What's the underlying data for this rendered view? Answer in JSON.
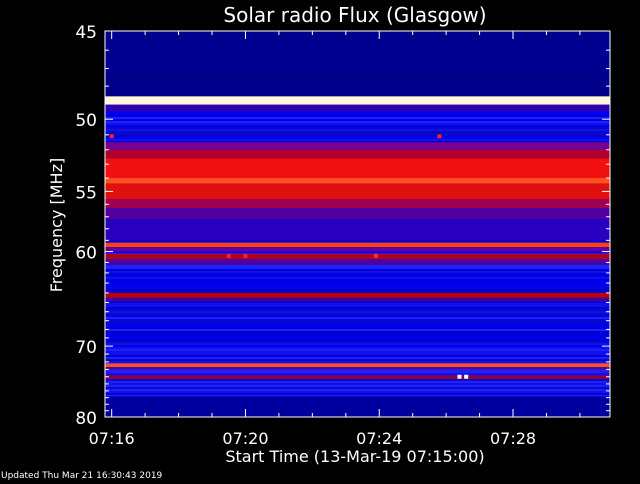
{
  "footer": {
    "updated": "Updated Thu Mar 21 16:30:43 2019"
  },
  "chart_data": {
    "type": "heatmap",
    "title": "Solar radio Flux (Glasgow)",
    "xlabel": "Start Time (13-Mar-19 07:15:00)",
    "ylabel": "Frequency [MHz]",
    "x_range_minutes": [
      15.8,
      30.9
    ],
    "y_range_mhz": [
      45,
      80
    ],
    "y_ticks": [
      45,
      50,
      55,
      60,
      70,
      80
    ],
    "y_tick_labels": [
      "45",
      "50",
      "55",
      "60",
      "70",
      "80"
    ],
    "y_minor_ticks": [
      46,
      47,
      48,
      49,
      51,
      52,
      53,
      54,
      56,
      57,
      58,
      59,
      61,
      62,
      63,
      64,
      65,
      66,
      67,
      68,
      69,
      71,
      72,
      73,
      74,
      75,
      76,
      77,
      78,
      79
    ],
    "x_ticks": [
      16,
      20,
      24,
      28
    ],
    "x_tick_labels": [
      "07:16",
      "07:20",
      "07:24",
      "07:28"
    ],
    "x_minor_ticks": [
      17,
      18,
      19,
      21,
      22,
      23,
      25,
      26,
      27,
      29,
      30
    ],
    "background_colors": [
      "#0000d8",
      "#0000f0",
      "#1010e8",
      "#0808c8",
      "#2020f8"
    ],
    "bands": [
      {
        "mhz_low": 45.0,
        "mhz_high": 47.0,
        "color": "#000090"
      },
      {
        "mhz_low": 47.0,
        "mhz_high": 48.6,
        "color": "#00008a"
      },
      {
        "mhz_low": 48.6,
        "mhz_high": 49.1,
        "color": "#fff7d8"
      },
      {
        "mhz_low": 49.1,
        "mhz_high": 49.5,
        "color": "#3000b0"
      },
      {
        "mhz_low": 51.5,
        "mhz_high": 52.0,
        "color": "#7a0090"
      },
      {
        "mhz_low": 52.0,
        "mhz_high": 52.6,
        "color": "#b00030"
      },
      {
        "mhz_low": 52.6,
        "mhz_high": 54.0,
        "color": "#f01010"
      },
      {
        "mhz_low": 54.0,
        "mhz_high": 54.4,
        "color": "#ff5020"
      },
      {
        "mhz_low": 54.4,
        "mhz_high": 55.6,
        "color": "#e01010"
      },
      {
        "mhz_low": 55.6,
        "mhz_high": 56.3,
        "color": "#a00050"
      },
      {
        "mhz_low": 56.3,
        "mhz_high": 57.2,
        "color": "#5000a0"
      },
      {
        "mhz_low": 57.2,
        "mhz_high": 59.0,
        "color": "#2a00c0"
      },
      {
        "mhz_low": 59.2,
        "mhz_high": 59.6,
        "color": "#ff4010"
      },
      {
        "mhz_low": 59.6,
        "mhz_high": 60.0,
        "color": "#6000a0"
      },
      {
        "mhz_low": 60.2,
        "mhz_high": 60.7,
        "color": "#b00020"
      },
      {
        "mhz_low": 60.7,
        "mhz_high": 61.2,
        "color": "#5000a0"
      },
      {
        "mhz_low": 64.0,
        "mhz_high": 64.5,
        "color": "#c00000"
      },
      {
        "mhz_low": 64.5,
        "mhz_high": 64.9,
        "color": "#4000a0"
      },
      {
        "mhz_low": 72.2,
        "mhz_high": 72.7,
        "color": "#ff5020"
      },
      {
        "mhz_low": 72.7,
        "mhz_high": 73.0,
        "color": "#5000a0"
      },
      {
        "mhz_low": 73.8,
        "mhz_high": 74.3,
        "color": "#900040"
      },
      {
        "mhz_low": 76.8,
        "mhz_high": 80.0,
        "color": "#0000a0"
      }
    ],
    "spots": [
      {
        "minute": 16.0,
        "mhz": 51.1,
        "color": "#ff2020"
      },
      {
        "minute": 25.8,
        "mhz": 51.1,
        "color": "#ff2020"
      },
      {
        "minute": 19.5,
        "mhz": 60.4,
        "color": "#ff2020"
      },
      {
        "minute": 20.0,
        "mhz": 60.4,
        "color": "#ff2020"
      },
      {
        "minute": 23.9,
        "mhz": 60.4,
        "color": "#ff3020"
      },
      {
        "minute": 26.4,
        "mhz": 74.0,
        "color": "#ffffff"
      },
      {
        "minute": 26.6,
        "mhz": 74.0,
        "color": "#ffffff"
      }
    ],
    "colors": {
      "frame": "#ffffff",
      "background": "#000000"
    }
  }
}
